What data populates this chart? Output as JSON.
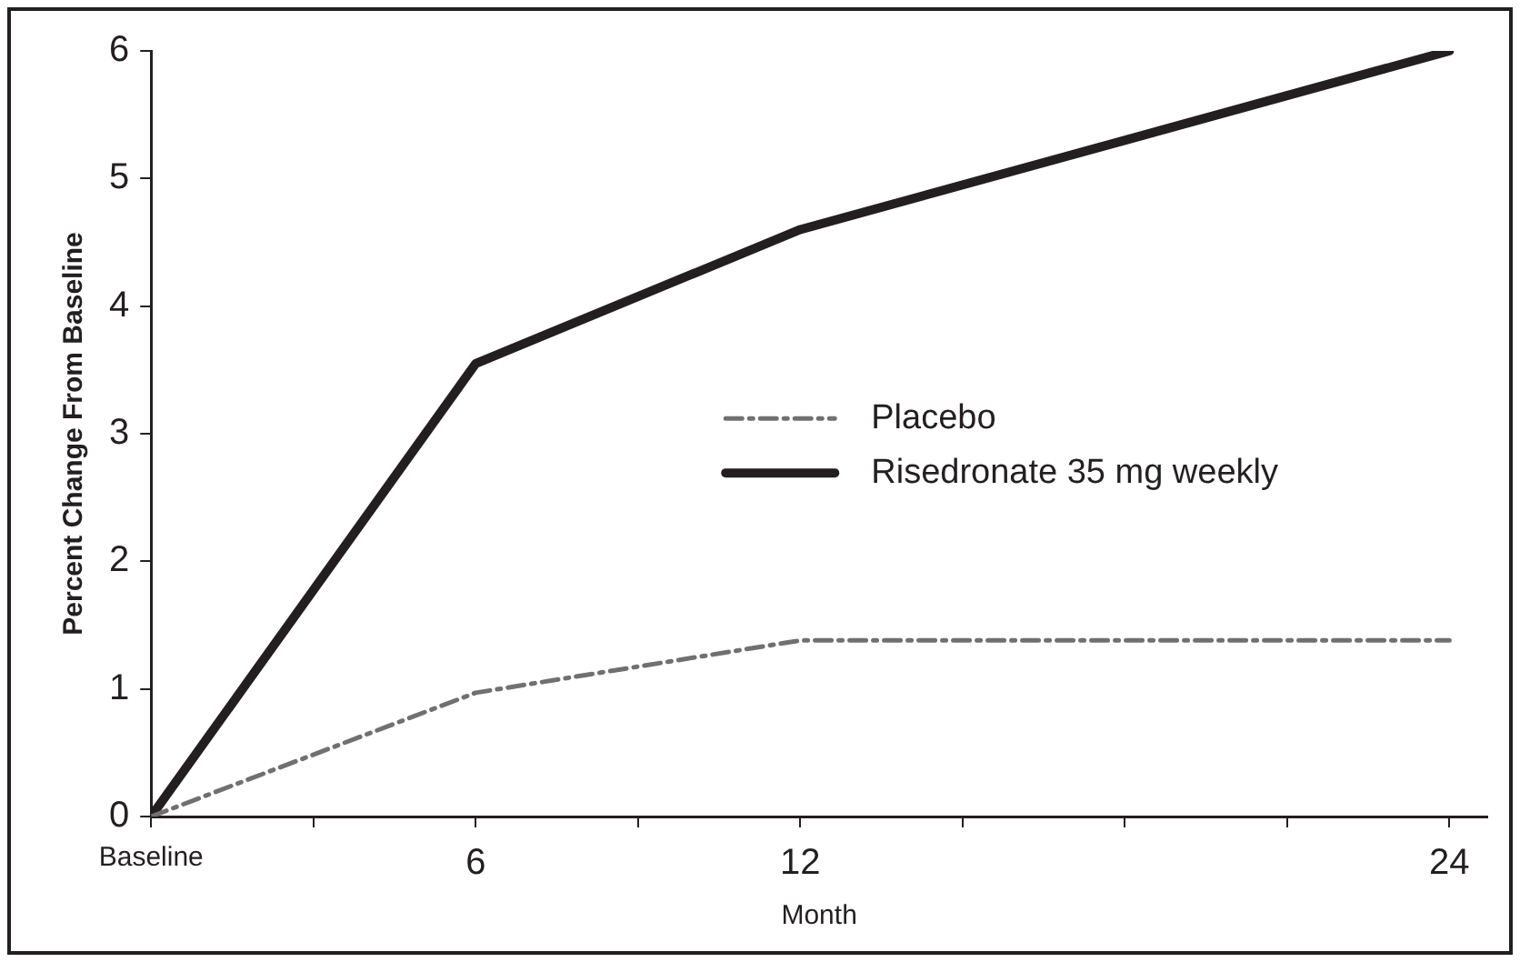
{
  "chart_data": {
    "type": "line",
    "xlabel": "Month",
    "ylabel": "Percent Change From Baseline",
    "x": [
      0,
      6,
      12,
      24
    ],
    "series": [
      {
        "name": "Placebo",
        "color": "#707070",
        "values": [
          0,
          0.97,
          1.38,
          1.38
        ],
        "line_style": "dashed"
      },
      {
        "name": "Risedronate 35 mg weekly",
        "color": "#231f20",
        "values": [
          0,
          3.55,
          4.6,
          6.0
        ],
        "line_style": "solid"
      }
    ],
    "xlim": [
      0,
      24.7
    ],
    "xticks": [
      {
        "value": 0,
        "label": "Baseline"
      },
      {
        "value": 3,
        "label": null
      },
      6,
      {
        "value": 9,
        "label": null
      },
      12,
      {
        "value": 15,
        "label": null
      },
      {
        "value": 18,
        "label": null
      },
      {
        "value": 21,
        "label": null
      },
      24
    ],
    "ylim": [
      0,
      6
    ],
    "yticks": [
      0,
      1,
      2,
      3,
      4,
      5,
      6
    ],
    "grid": false,
    "legend": "center",
    "marker": "none"
  }
}
